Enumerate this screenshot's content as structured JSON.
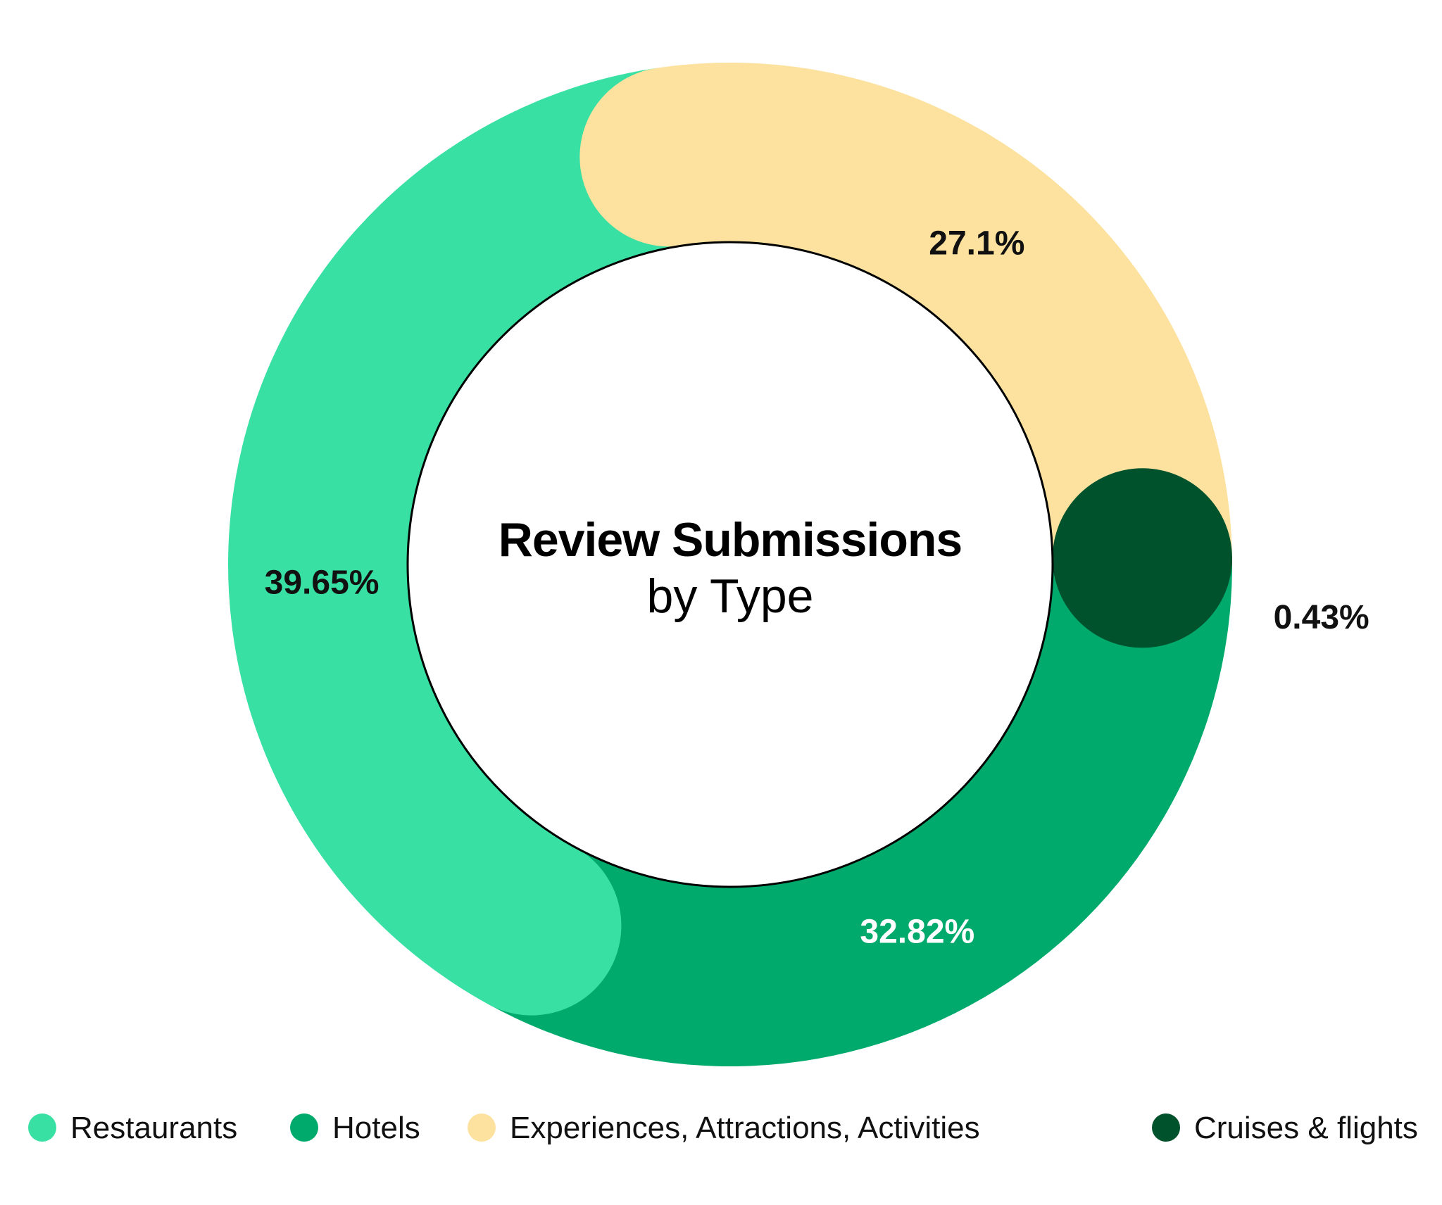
{
  "chart_data": {
    "type": "pie",
    "title": "Review Submissions",
    "subtitle": "by Type",
    "series": [
      {
        "name": "Restaurants",
        "value": 39.65,
        "label": "39.65%",
        "color": "#38E0A3",
        "label_color": "#111111"
      },
      {
        "name": "Hotels",
        "value": 32.82,
        "label": "32.82%",
        "color": "#00AA6C",
        "label_color": "#FFFFFF"
      },
      {
        "name": "Experiences, Attractions, Activities",
        "value": 27.1,
        "label": "27.1%",
        "color": "#FCE29E",
        "label_color": "#111111"
      },
      {
        "name": "Cruises & flights",
        "value": 0.43,
        "label": "0.43%",
        "color": "#00522D",
        "label_color": "#111111"
      }
    ],
    "legend_position": "bottom",
    "donut": true
  }
}
